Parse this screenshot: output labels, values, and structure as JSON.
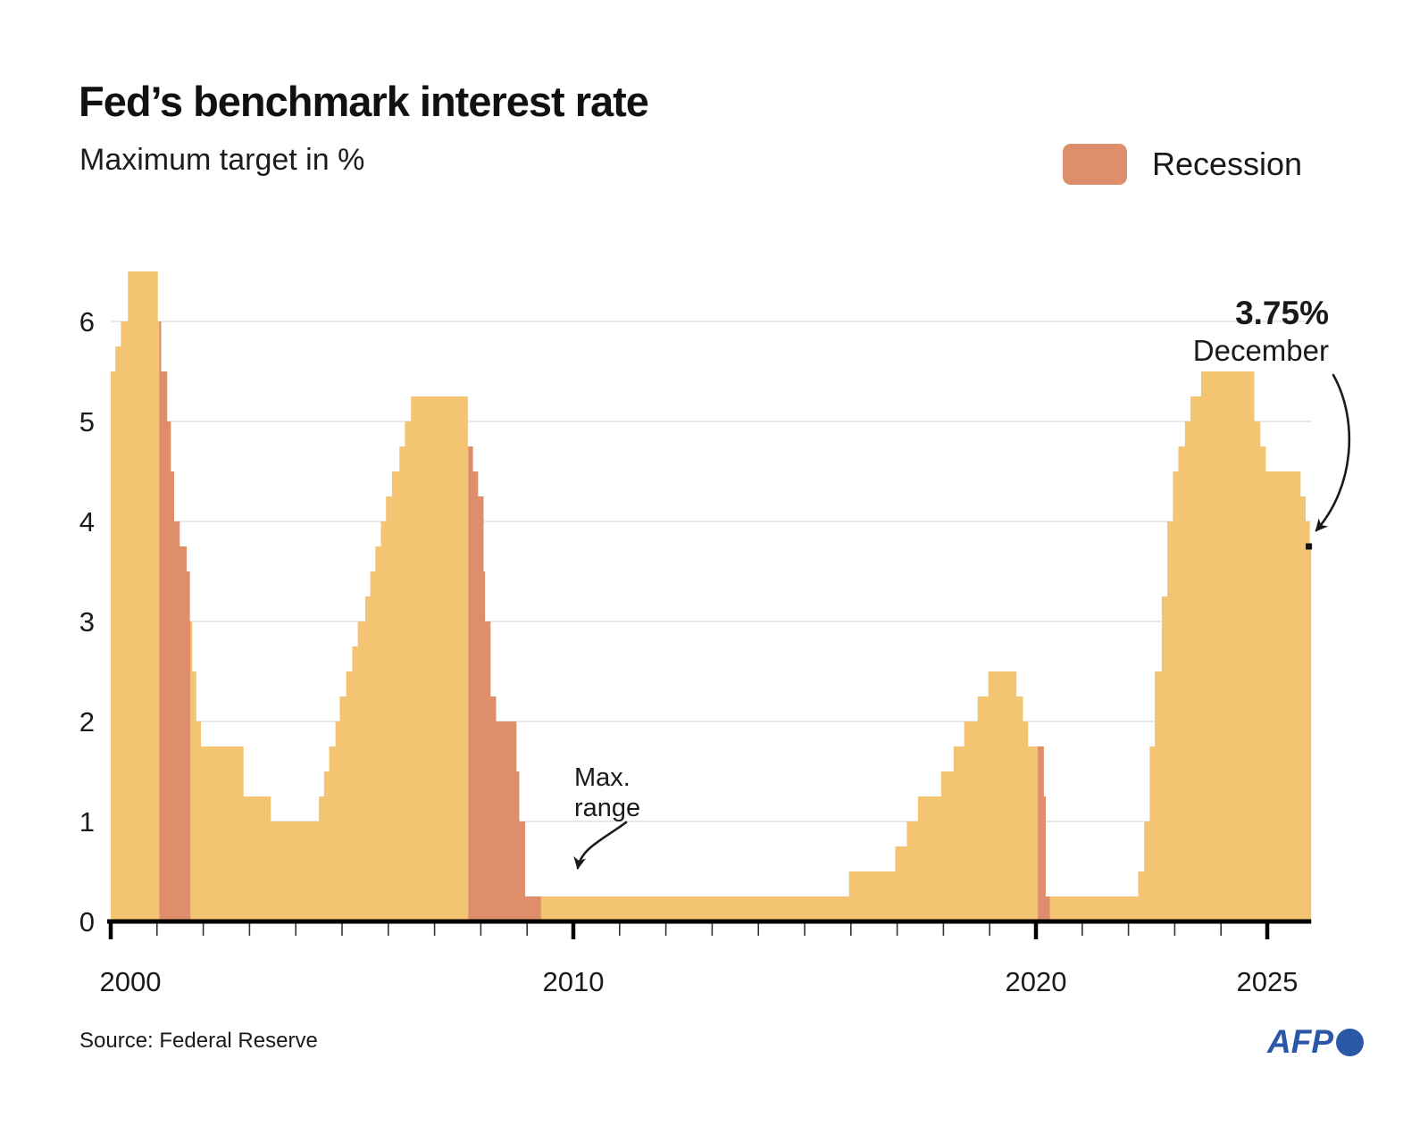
{
  "header": {
    "title": "Fed’s benchmark interest rate",
    "subtitle": "Maximum target in %"
  },
  "legend": {
    "label": "Recession",
    "color": "#DF8E6C"
  },
  "annotations": {
    "end_value": "3.75%",
    "end_label": "December",
    "max_range_line1": "Max.",
    "max_range_line2": "range"
  },
  "footer": {
    "source": "Source: Federal Reserve",
    "logo": "AFP",
    "logo_color": "#2B57A7"
  },
  "chart_data": {
    "type": "area",
    "step": true,
    "title": "Fed's benchmark interest rate",
    "ylabel": "Maximum target in %",
    "unit": "%",
    "x_domain": [
      2000,
      2025.95
    ],
    "y_domain": [
      0,
      6.625
    ],
    "y_ticks": [
      0,
      1,
      2,
      3,
      4,
      5,
      6
    ],
    "x_tick_every_years": 1,
    "x_ticks_labeled": [
      2000,
      2010,
      2020,
      2025
    ],
    "grid": "horizontal",
    "legend_position": "top-right",
    "colors": {
      "area": "#F3C472",
      "recession": "#DF8E6C",
      "grid": "#e9e9e9",
      "axis": "#000000",
      "minor_tick": "#333333",
      "end_dot": "#111111"
    },
    "series": [
      {
        "name": "Maximum target",
        "points": [
          [
            2000.0,
            5.5
          ],
          [
            2000.1,
            5.75
          ],
          [
            2000.22,
            6.0
          ],
          [
            2000.37,
            6.5
          ],
          [
            2001.02,
            6.0
          ],
          [
            2001.09,
            5.5
          ],
          [
            2001.22,
            5.0
          ],
          [
            2001.3,
            4.5
          ],
          [
            2001.37,
            4.0
          ],
          [
            2001.49,
            3.75
          ],
          [
            2001.64,
            3.5
          ],
          [
            2001.71,
            3.0
          ],
          [
            2001.76,
            2.5
          ],
          [
            2001.85,
            2.0
          ],
          [
            2001.95,
            1.75
          ],
          [
            2002.87,
            1.25
          ],
          [
            2003.46,
            1.0
          ],
          [
            2004.5,
            1.25
          ],
          [
            2004.61,
            1.5
          ],
          [
            2004.72,
            1.75
          ],
          [
            2004.86,
            2.0
          ],
          [
            2004.95,
            2.25
          ],
          [
            2005.09,
            2.5
          ],
          [
            2005.22,
            2.75
          ],
          [
            2005.34,
            3.0
          ],
          [
            2005.5,
            3.25
          ],
          [
            2005.61,
            3.5
          ],
          [
            2005.72,
            3.75
          ],
          [
            2005.84,
            4.0
          ],
          [
            2005.95,
            4.25
          ],
          [
            2006.08,
            4.5
          ],
          [
            2006.24,
            4.75
          ],
          [
            2006.36,
            5.0
          ],
          [
            2006.49,
            5.25
          ],
          [
            2007.72,
            4.75
          ],
          [
            2007.83,
            4.5
          ],
          [
            2007.94,
            4.25
          ],
          [
            2008.06,
            3.5
          ],
          [
            2008.09,
            3.0
          ],
          [
            2008.21,
            2.25
          ],
          [
            2008.33,
            2.0
          ],
          [
            2008.77,
            1.5
          ],
          [
            2008.83,
            1.0
          ],
          [
            2008.96,
            0.25
          ],
          [
            2015.96,
            0.5
          ],
          [
            2016.96,
            0.75
          ],
          [
            2017.21,
            1.0
          ],
          [
            2017.45,
            1.25
          ],
          [
            2017.95,
            1.5
          ],
          [
            2018.22,
            1.75
          ],
          [
            2018.45,
            2.0
          ],
          [
            2018.74,
            2.25
          ],
          [
            2018.97,
            2.5
          ],
          [
            2019.58,
            2.25
          ],
          [
            2019.72,
            2.0
          ],
          [
            2019.83,
            1.75
          ],
          [
            2020.17,
            1.25
          ],
          [
            2020.21,
            0.25
          ],
          [
            2022.21,
            0.5
          ],
          [
            2022.34,
            1.0
          ],
          [
            2022.46,
            1.75
          ],
          [
            2022.57,
            2.5
          ],
          [
            2022.72,
            3.25
          ],
          [
            2022.84,
            4.0
          ],
          [
            2022.96,
            4.5
          ],
          [
            2023.08,
            4.75
          ],
          [
            2023.22,
            5.0
          ],
          [
            2023.34,
            5.25
          ],
          [
            2023.57,
            5.5
          ],
          [
            2024.72,
            5.0
          ],
          [
            2024.85,
            4.75
          ],
          [
            2024.97,
            4.5
          ],
          [
            2025.72,
            4.25
          ],
          [
            2025.83,
            4.0
          ],
          [
            2025.92,
            3.75
          ]
        ]
      }
    ],
    "recessions": [
      [
        2001.05,
        2001.72
      ],
      [
        2007.73,
        2009.3
      ],
      [
        2020.04,
        2020.3
      ]
    ],
    "end_dot": [
      2025.9,
      3.75
    ]
  }
}
